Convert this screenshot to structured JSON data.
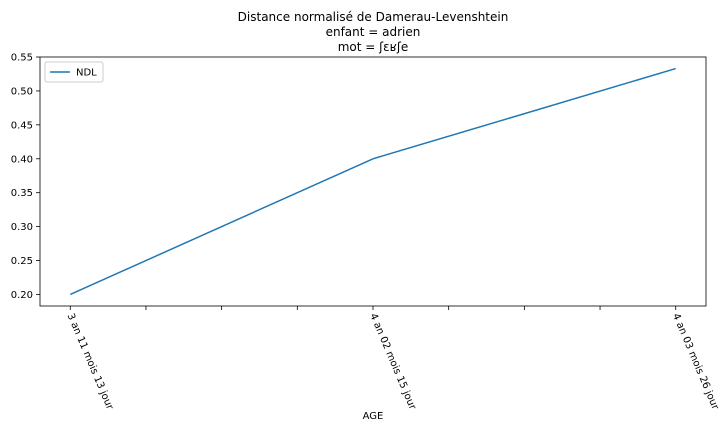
{
  "chart_data": {
    "type": "line",
    "title": [
      "Distance normalisé de Damerau-Levenshtein",
      "enfant = adrien",
      "mot = ʃɛʁʃe"
    ],
    "xlabel": "AGE",
    "ylabel": "",
    "categories": [
      "3 an 11 mois 13 jour",
      "4 an 02 mois 15 jour",
      "4 an 03 mois 26 jour"
    ],
    "x_positions": [
      0,
      4,
      8
    ],
    "x_range": [
      -0.4,
      8.4
    ],
    "x_ticks": [
      0,
      1,
      2,
      3,
      4,
      5,
      6,
      7,
      8
    ],
    "series": [
      {
        "name": "NDL",
        "values": [
          0.2,
          0.4,
          0.533
        ],
        "color": "#1f77b4"
      }
    ],
    "ylim": [
      0.183,
      0.55
    ],
    "yticks": [
      0.2,
      0.25,
      0.3,
      0.35,
      0.4,
      0.45,
      0.5,
      0.55
    ],
    "ytick_labels": [
      "0.20",
      "0.25",
      "0.30",
      "0.35",
      "0.40",
      "0.45",
      "0.50",
      "0.55"
    ],
    "grid": false,
    "legend_position": "upper-left"
  }
}
